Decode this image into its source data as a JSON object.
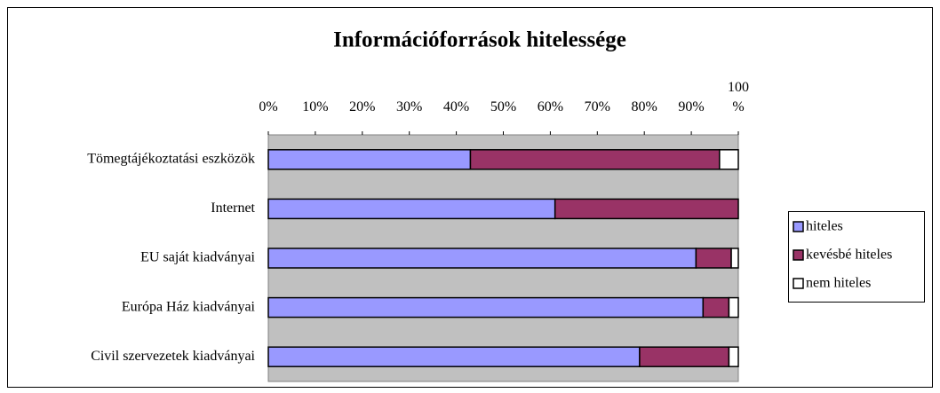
{
  "chart_data": {
    "type": "stacked_bar_horizontal",
    "title": "Információforrások hitelessége",
    "categories": [
      "Tömegtájékoztatási eszközök",
      "Internet",
      "EU saját kiadványai",
      "Európa Ház kiadványai",
      "Civil szervezetek kiadványai"
    ],
    "series": [
      {
        "name": "hiteles",
        "color": "#9999ff",
        "values": [
          43,
          61,
          91,
          92.5,
          79
        ]
      },
      {
        "name": "kevésbé hiteles",
        "color": "#993366",
        "values": [
          53,
          39,
          7.5,
          5.5,
          19
        ]
      },
      {
        "name": "nem hiteles",
        "color": "#ffffff",
        "values": [
          4,
          0,
          1.5,
          2,
          2
        ]
      }
    ],
    "xlim": [
      0,
      100
    ],
    "xticks": [
      {
        "value": 0,
        "label": "0%"
      },
      {
        "value": 10,
        "label": "10%"
      },
      {
        "value": 20,
        "label": "20%"
      },
      {
        "value": 30,
        "label": "30%"
      },
      {
        "value": 40,
        "label": "40%"
      },
      {
        "value": 50,
        "label": "50%"
      },
      {
        "value": 60,
        "label": "60%"
      },
      {
        "value": 70,
        "label": "70%"
      },
      {
        "value": 80,
        "label": "80%"
      },
      {
        "value": 90,
        "label": "90%"
      },
      {
        "value": 100,
        "label": "100 %"
      }
    ],
    "legend": "right"
  }
}
